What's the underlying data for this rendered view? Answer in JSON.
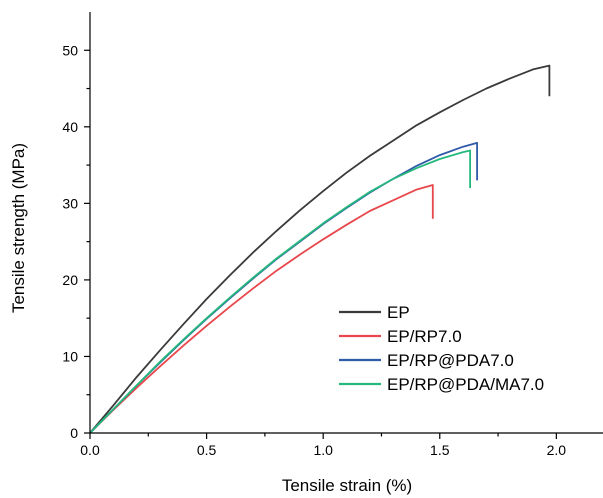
{
  "chart_data": {
    "type": "line",
    "title": "",
    "xlabel": "Tensile strain (%)",
    "ylabel": "Tensile strength (MPa)",
    "xlim": [
      0,
      2.2
    ],
    "ylim": [
      0,
      55
    ],
    "xticks": [
      "0.0",
      "0.5",
      "1.0",
      "1.5",
      "2.0"
    ],
    "xtick_values": [
      0,
      0.5,
      1.0,
      1.5,
      2.0
    ],
    "yticks": [
      "0",
      "10",
      "20",
      "30",
      "40",
      "50"
    ],
    "ytick_values": [
      0,
      10,
      20,
      30,
      40,
      50
    ],
    "grid": false,
    "legend_position": "bottom-right",
    "series": [
      {
        "name": "EP",
        "color": "#3a3a3a",
        "x": [
          0,
          0.1,
          0.2,
          0.3,
          0.4,
          0.5,
          0.6,
          0.7,
          0.8,
          0.9,
          1.0,
          1.1,
          1.2,
          1.3,
          1.4,
          1.5,
          1.6,
          1.7,
          1.8,
          1.9,
          1.97,
          1.97
        ],
        "y": [
          0,
          3.6,
          7.3,
          10.8,
          14.2,
          17.5,
          20.6,
          23.6,
          26.4,
          29.1,
          31.6,
          34.0,
          36.2,
          38.2,
          40.2,
          41.9,
          43.5,
          45.0,
          46.3,
          47.5,
          48.0,
          44.0
        ]
      },
      {
        "name": "EP/RP7.0",
        "color": "#e8474c",
        "x": [
          0,
          0.1,
          0.2,
          0.3,
          0.4,
          0.5,
          0.6,
          0.7,
          0.8,
          0.9,
          1.0,
          1.1,
          1.2,
          1.3,
          1.4,
          1.47,
          1.47
        ],
        "y": [
          0,
          3.0,
          5.9,
          8.7,
          11.4,
          14.0,
          16.5,
          18.9,
          21.2,
          23.3,
          25.3,
          27.2,
          29.0,
          30.4,
          31.8,
          32.4,
          28.0
        ]
      },
      {
        "name": "EP/RP@PDA7.0",
        "color": "#2f5aa8",
        "x": [
          0,
          0.1,
          0.2,
          0.3,
          0.4,
          0.5,
          0.6,
          0.7,
          0.8,
          0.9,
          1.0,
          1.1,
          1.2,
          1.3,
          1.4,
          1.5,
          1.6,
          1.66,
          1.66
        ],
        "y": [
          0,
          3.1,
          6.2,
          9.2,
          12.1,
          14.9,
          17.6,
          20.2,
          22.7,
          25.0,
          27.3,
          29.4,
          31.4,
          33.2,
          34.9,
          36.3,
          37.4,
          37.9,
          33.0
        ]
      },
      {
        "name": "EP/RP@PDA/MA7.0",
        "color": "#25b87c",
        "x": [
          0,
          0.1,
          0.2,
          0.3,
          0.4,
          0.5,
          0.6,
          0.7,
          0.8,
          0.9,
          1.0,
          1.1,
          1.2,
          1.3,
          1.4,
          1.5,
          1.6,
          1.63,
          1.63
        ],
        "y": [
          0,
          3.1,
          6.2,
          9.3,
          12.2,
          15.0,
          17.7,
          20.3,
          22.8,
          25.1,
          27.4,
          29.5,
          31.5,
          33.2,
          34.6,
          35.8,
          36.7,
          36.9,
          32.0
        ]
      }
    ]
  }
}
